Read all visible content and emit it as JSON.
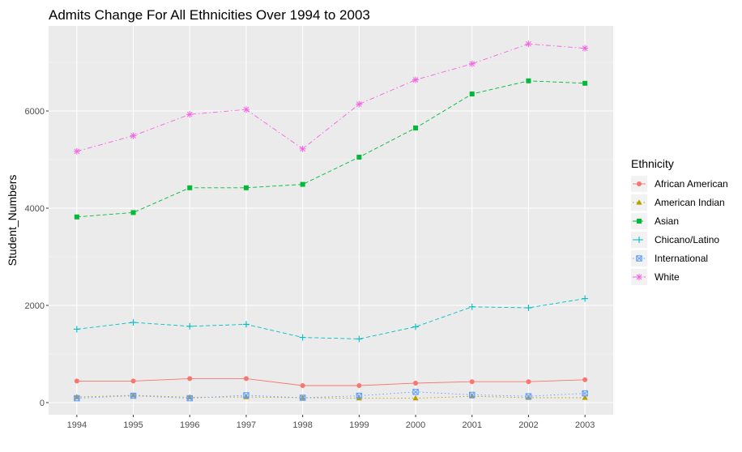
{
  "chart_data": {
    "type": "line",
    "title": "Admits Change For All Ethnicities Over 1994 to 2003",
    "xlabel": "",
    "ylabel": "Student_Numbers",
    "x": [
      1994,
      1995,
      1996,
      1997,
      1998,
      1999,
      2000,
      2001,
      2002,
      2003
    ],
    "ylim": [
      -250,
      7750
    ],
    "yticks": [
      0,
      2000,
      4000,
      6000
    ],
    "grid": true,
    "legend": {
      "title": "Ethnicity",
      "placement": "right"
    },
    "series": [
      {
        "name": "African American",
        "color": "#F8766D",
        "linetype": "solid",
        "marker": "circle",
        "values": [
          443,
          443,
          493,
          493,
          350,
          350,
          400,
          430,
          430,
          470
        ]
      },
      {
        "name": "American Indian",
        "color": "#B79F00",
        "linetype": "dotted",
        "marker": "triangle",
        "values": [
          115,
          150,
          110,
          115,
          100,
          90,
          90,
          130,
          100,
          100
        ]
      },
      {
        "name": "Asian",
        "color": "#00BA38",
        "linetype": "dashed",
        "marker": "square",
        "values": [
          3820,
          3910,
          4420,
          4420,
          4490,
          5050,
          5650,
          6350,
          6620,
          6570
        ]
      },
      {
        "name": "Chicano/Latino",
        "color": "#00BFC4",
        "linetype": "dashed",
        "marker": "plus",
        "values": [
          1510,
          1650,
          1570,
          1610,
          1340,
          1310,
          1560,
          1970,
          1950,
          2140
        ]
      },
      {
        "name": "International",
        "color": "#619CFF",
        "linetype": "dotted",
        "marker": "boxx",
        "values": [
          90,
          140,
          90,
          150,
          100,
          140,
          220,
          160,
          130,
          190
        ]
      },
      {
        "name": "White",
        "color": "#F564E3",
        "linetype": "dashdot",
        "marker": "asterisk",
        "values": [
          5170,
          5490,
          5930,
          6030,
          5220,
          6140,
          6640,
          6970,
          7380,
          7290
        ]
      }
    ]
  }
}
